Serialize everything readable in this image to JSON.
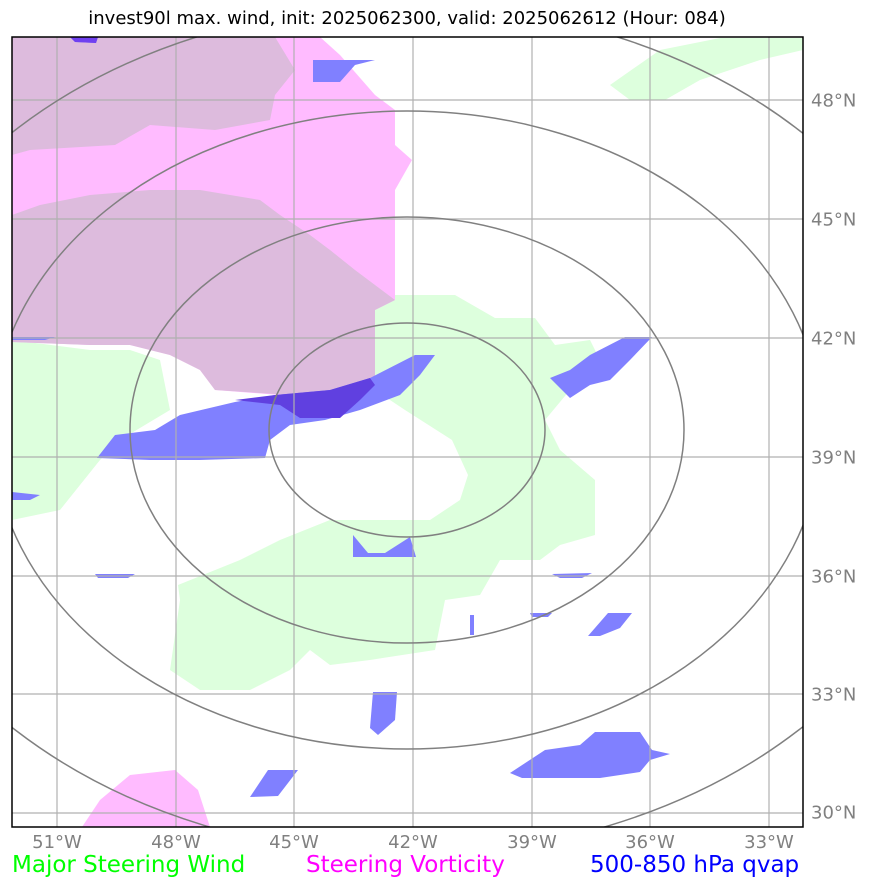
{
  "title": "invest90l max. wind, init: 2025062300, valid: 2025062612 (Hour: 084)",
  "map": {
    "lon_range": [
      -52.2,
      -32.2
    ],
    "lat_range": [
      29.6,
      49.6
    ],
    "lon_ticks": [
      "51°W",
      "48°W",
      "45°W",
      "42°W",
      "39°W",
      "36°W",
      "33°W"
    ],
    "lat_ticks": [
      "48°N",
      "45°N",
      "42°N",
      "39°N",
      "36°N",
      "33°N",
      "30°N"
    ],
    "grid": true,
    "range_rings": 4
  },
  "legend": {
    "wind": {
      "label": "Major Steering Wind",
      "color": "#00ff00"
    },
    "vorticity": {
      "label": "Steering Vorticity",
      "color": "#ff00ff"
    },
    "qvap": {
      "label": "500-850 hPa qvap",
      "color": "#0000ff"
    }
  },
  "colors": {
    "wind_fill": "#ddffdd",
    "vorticity_fill": "#ffbbff",
    "overlap_fill": "#ddbbdd",
    "qvap_fill": "#8080ff",
    "qvap_dark": "#6040e0",
    "grid": "#b0b0b0",
    "rings": "#808080"
  }
}
